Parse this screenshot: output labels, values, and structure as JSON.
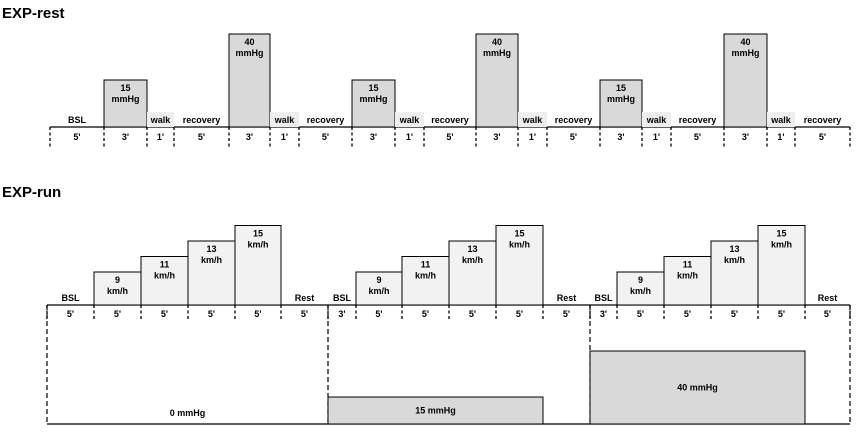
{
  "colors": {
    "pressure_fill": "#d9d9d9",
    "speed_fill": "#f2f2f2",
    "walk_fill": "#eeeeee"
  },
  "exp_rest": {
    "title": "EXP-rest",
    "segments": [
      {
        "label": "BSL",
        "duration": "5'"
      },
      {
        "label": "15 mmHg",
        "line1": "15",
        "line2": "mmHg",
        "duration": "3'",
        "type": "pressure",
        "level": 15
      },
      {
        "label": "walk",
        "duration": "1'",
        "type": "walk"
      },
      {
        "label": "recovery",
        "duration": "5'"
      },
      {
        "label": "40 mmHg",
        "line1": "40",
        "line2": "mmHg",
        "duration": "3'",
        "type": "pressure",
        "level": 40
      },
      {
        "label": "walk",
        "duration": "1'",
        "type": "walk"
      },
      {
        "label": "recovery",
        "duration": "5'"
      },
      {
        "label": "15 mmHg",
        "line1": "15",
        "line2": "mmHg",
        "duration": "3'",
        "type": "pressure",
        "level": 15
      },
      {
        "label": "walk",
        "duration": "1'",
        "type": "walk"
      },
      {
        "label": "recovery",
        "duration": "5'"
      },
      {
        "label": "40 mmHg",
        "line1": "40",
        "line2": "mmHg",
        "duration": "3'",
        "type": "pressure",
        "level": 40
      },
      {
        "label": "walk",
        "duration": "1'",
        "type": "walk"
      },
      {
        "label": "recovery",
        "duration": "5'"
      },
      {
        "label": "15 mmHg",
        "line1": "15",
        "line2": "mmHg",
        "duration": "3'",
        "type": "pressure",
        "level": 15
      },
      {
        "label": "walk",
        "duration": "1'",
        "type": "walk"
      },
      {
        "label": "recovery",
        "duration": "5'"
      },
      {
        "label": "40 mmHg",
        "line1": "40",
        "line2": "mmHg",
        "duration": "3'",
        "type": "pressure",
        "level": 40
      },
      {
        "label": "walk",
        "duration": "1'",
        "type": "walk"
      },
      {
        "label": "recovery",
        "duration": "5'"
      }
    ]
  },
  "exp_run": {
    "title": "EXP-run",
    "blocks": [
      {
        "condition": "0 mmHg",
        "condition_level": 0,
        "segments": [
          {
            "label": "BSL",
            "duration": "5'"
          },
          {
            "line1": "9",
            "line2": "km/h",
            "duration": "5'",
            "speed": 9
          },
          {
            "line1": "11",
            "line2": "km/h",
            "duration": "5'",
            "speed": 11
          },
          {
            "line1": "13",
            "line2": "km/h",
            "duration": "5'",
            "speed": 13
          },
          {
            "line1": "15",
            "line2": "km/h",
            "duration": "5'",
            "speed": 15
          },
          {
            "label": "Rest",
            "duration": "5'"
          }
        ]
      },
      {
        "condition": "15 mmHg",
        "condition_level": 15,
        "segments": [
          {
            "label": "BSL",
            "duration": "3'"
          },
          {
            "line1": "9",
            "line2": "km/h",
            "duration": "5'",
            "speed": 9
          },
          {
            "line1": "11",
            "line2": "km/h",
            "duration": "5'",
            "speed": 11
          },
          {
            "line1": "13",
            "line2": "km/h",
            "duration": "5'",
            "speed": 13
          },
          {
            "line1": "15",
            "line2": "km/h",
            "duration": "5'",
            "speed": 15
          },
          {
            "label": "Rest",
            "duration": "5'"
          }
        ]
      },
      {
        "condition": "40 mmHg",
        "condition_level": 40,
        "segments": [
          {
            "label": "BSL",
            "duration": "3'"
          },
          {
            "line1": "9",
            "line2": "km/h",
            "duration": "5'",
            "speed": 9
          },
          {
            "line1": "11",
            "line2": "km/h",
            "duration": "5'",
            "speed": 11
          },
          {
            "line1": "13",
            "line2": "km/h",
            "duration": "5'",
            "speed": 13
          },
          {
            "line1": "15",
            "line2": "km/h",
            "duration": "5'",
            "speed": 15
          },
          {
            "label": "Rest",
            "duration": "5'"
          }
        ]
      }
    ]
  }
}
